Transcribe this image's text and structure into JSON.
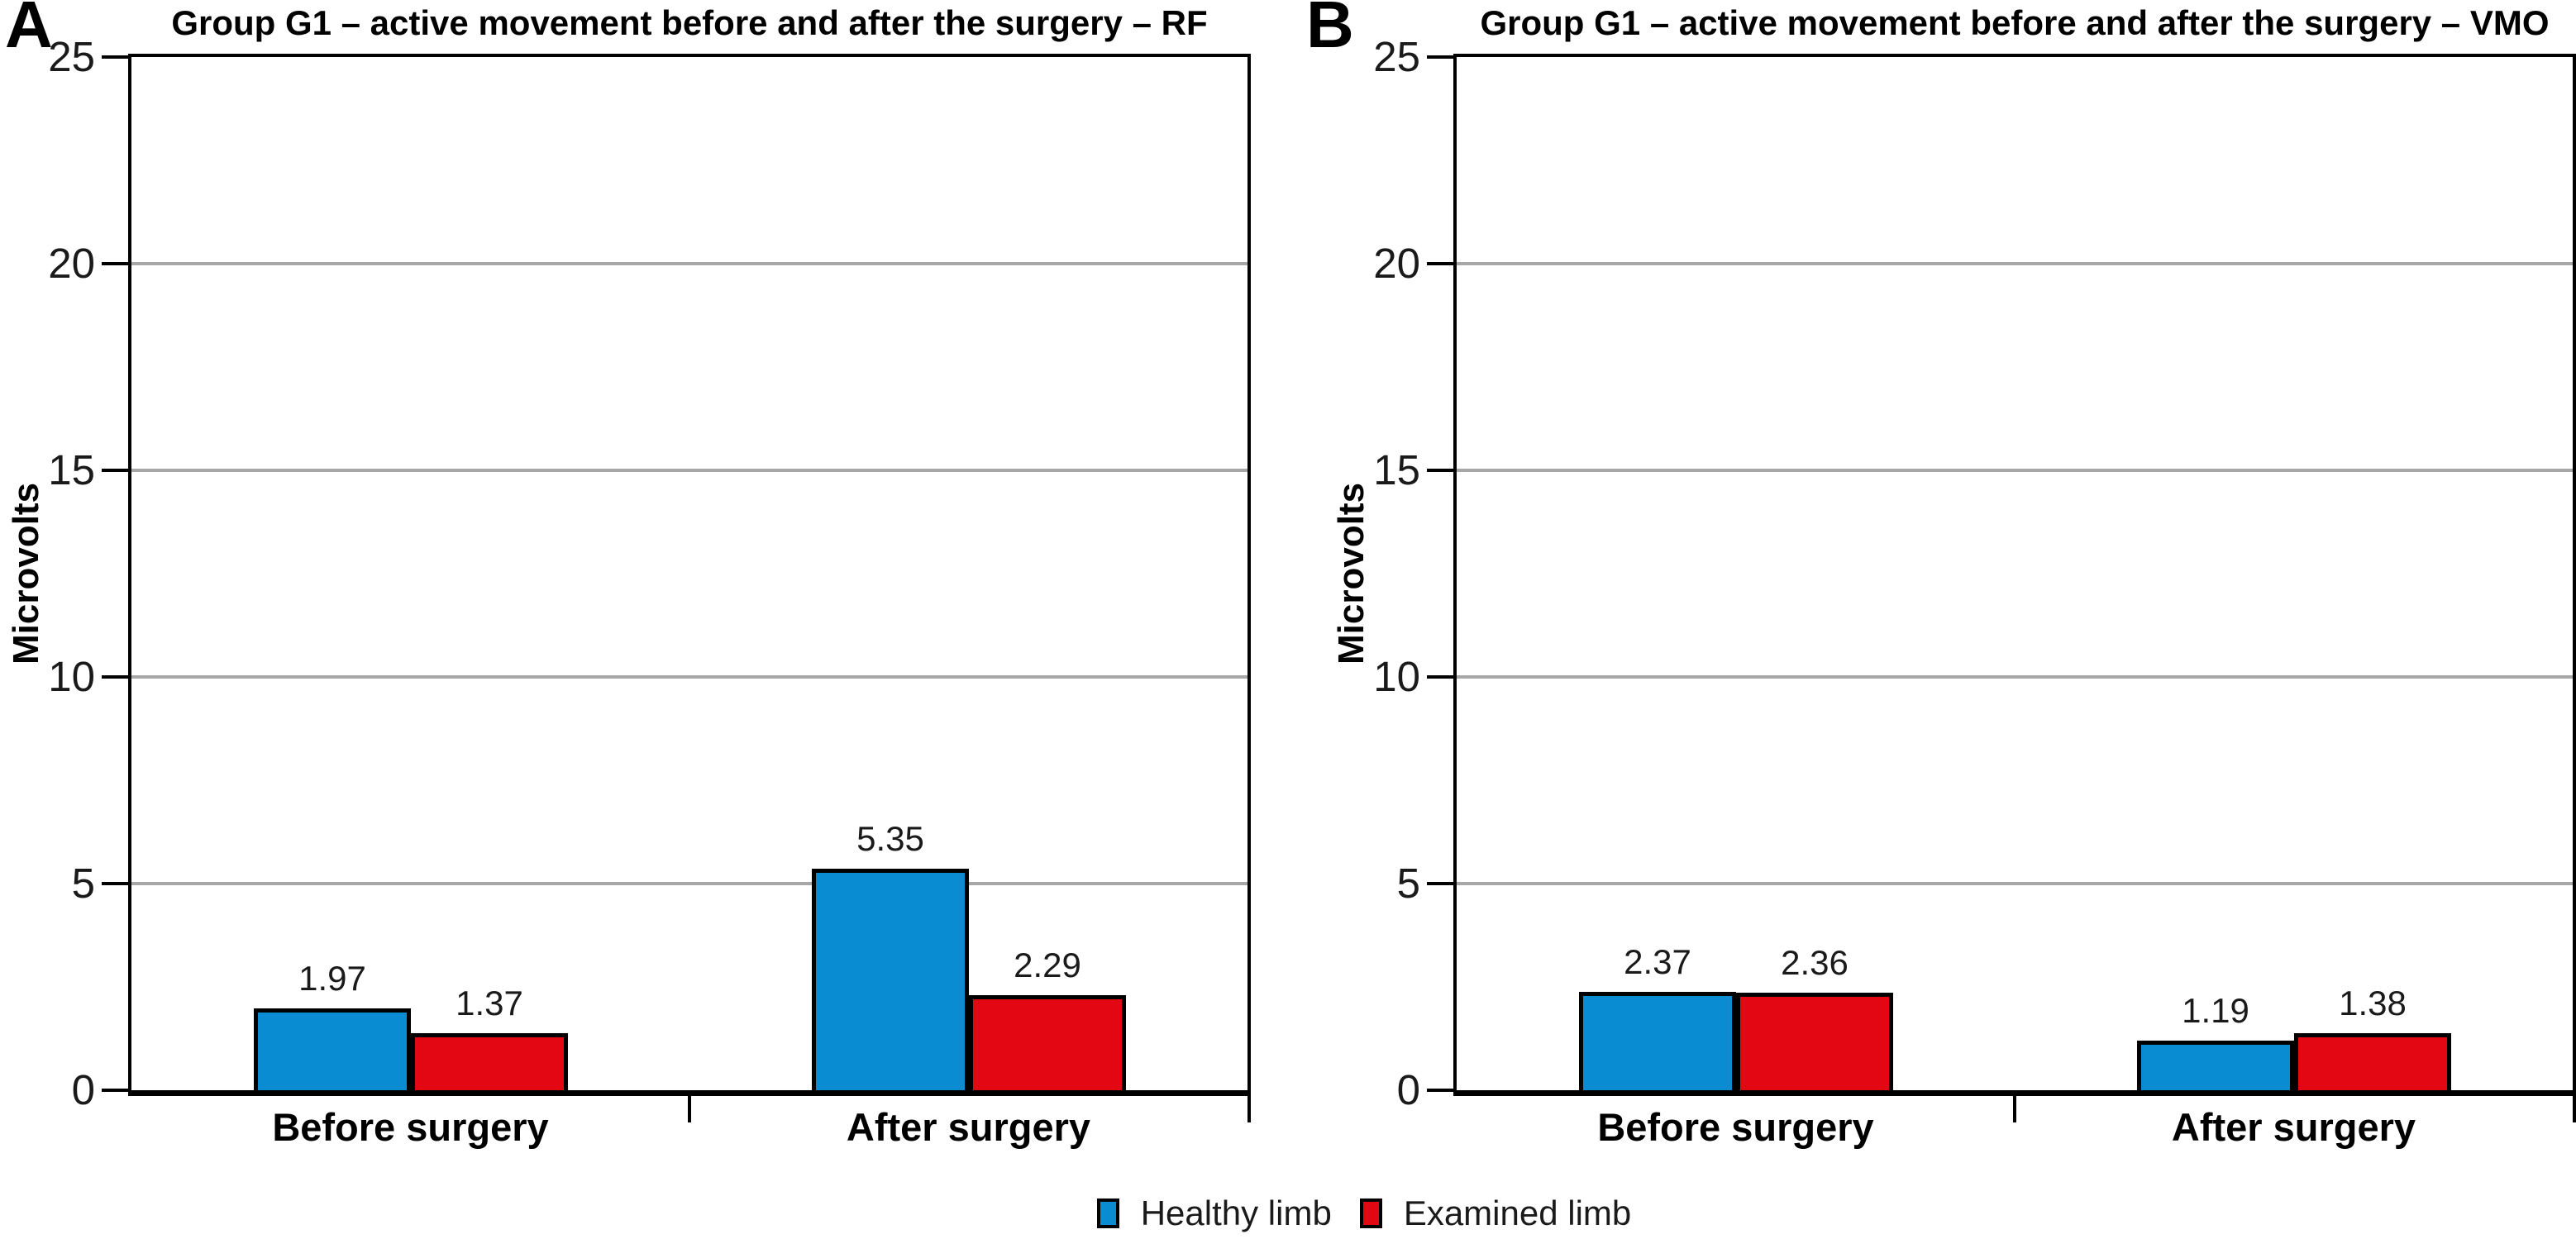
{
  "figure": {
    "panels": [
      {
        "letter": "A",
        "title": "Group G1 – active movement before and after the surgery – RF",
        "ylabel": "Microvolts"
      },
      {
        "letter": "B",
        "title": "Group G1 – active movement before and after the surgery – VMO",
        "ylabel": "Microvolts"
      }
    ]
  },
  "legend": {
    "items": [
      {
        "label": "Healthy limb",
        "color": "#0a8cd2"
      },
      {
        "label": "Examined limb",
        "color": "#e30613"
      }
    ]
  },
  "chart_data": [
    {
      "type": "bar",
      "panel": "A",
      "title": "Group G1 – active movement before and after the surgery – RF",
      "categories": [
        "Before surgery",
        "After surgery"
      ],
      "series": [
        {
          "name": "Healthy limb",
          "color": "#0a8cd2",
          "values": [
            1.97,
            5.35
          ]
        },
        {
          "name": "Examined limb",
          "color": "#e30613",
          "values": [
            1.37,
            2.29
          ]
        }
      ],
      "xlabel": "",
      "ylabel": "Microvolts",
      "ylim": [
        0,
        25
      ],
      "yticks": [
        0,
        5,
        10,
        15,
        20,
        25
      ],
      "grid": true,
      "grid_color": "#a7a7a7",
      "bar_labels": true,
      "legend_position": "bottom"
    },
    {
      "type": "bar",
      "panel": "B",
      "title": "Group G1 – active movement before and after the surgery – VMO",
      "categories": [
        "Before surgery",
        "After surgery"
      ],
      "series": [
        {
          "name": "Healthy limb",
          "color": "#0a8cd2",
          "values": [
            2.37,
            1.19
          ]
        },
        {
          "name": "Examined limb",
          "color": "#e30613",
          "values": [
            2.36,
            1.38
          ]
        }
      ],
      "xlabel": "",
      "ylabel": "Microvolts",
      "ylim": [
        0,
        25
      ],
      "yticks": [
        0,
        5,
        10,
        15,
        20,
        25
      ],
      "grid": true,
      "grid_color": "#a7a7a7",
      "bar_labels": true,
      "legend_position": "bottom"
    }
  ]
}
